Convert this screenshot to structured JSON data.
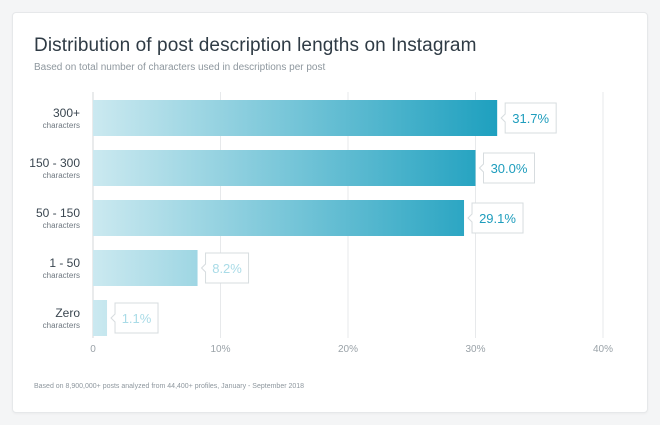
{
  "chart": {
    "title": "Distribution of post description lengths on Instagram",
    "subtitle": "Based on total number of characters used in descriptions per post",
    "footnote": "Based on 8,900,000+ posts analyzed from 44,400+ profiles, January - September 2018"
  },
  "colors": {
    "bar_start": "#cbe9f0",
    "bar_end": "#1ea0bf",
    "label_strong": "#1e9dbd",
    "label_light": "#a9dbe7",
    "grid": "#e7e9eb",
    "axis": "#d3d7da"
  },
  "chart_data": {
    "type": "bar",
    "orientation": "horizontal",
    "categories": [
      "300+",
      "150 - 300",
      "50 - 150",
      "1 - 50",
      "Zero"
    ],
    "category_sublabel": "characters",
    "values": [
      31.7,
      30.0,
      29.1,
      8.2,
      1.1
    ],
    "value_labels": [
      "31.7%",
      "30.0%",
      "29.1%",
      "8.2%",
      "1.1%"
    ],
    "x_ticks": [
      0,
      10,
      20,
      30,
      40
    ],
    "x_tick_labels": [
      "0",
      "10%",
      "20%",
      "30%",
      "40%"
    ],
    "xlim": [
      0,
      40
    ],
    "grid": true,
    "legend": "none"
  }
}
